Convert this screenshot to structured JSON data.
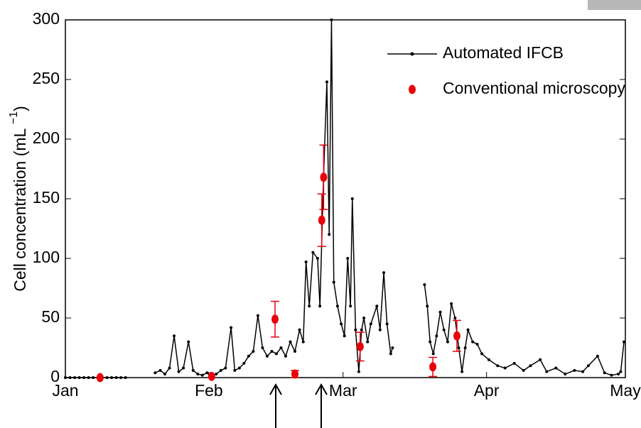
{
  "chart_data": {
    "type": "line",
    "ylabel": "Cell concentration (mL",
    "ylabel_exponent": "−1",
    "ylabel_close": ")",
    "xlim": [
      0,
      121
    ],
    "xticks": [
      {
        "value": 0,
        "label": "Jan"
      },
      {
        "value": 31,
        "label": "Feb"
      },
      {
        "value": 60,
        "label": "Mar"
      },
      {
        "value": 91,
        "label": "Apr"
      },
      {
        "value": 121,
        "label": "May"
      }
    ],
    "ylim": [
      0,
      300
    ],
    "yticks": [
      0,
      50,
      100,
      150,
      200,
      250,
      300
    ],
    "legend": "upper right",
    "series": [
      {
        "name": "Automated IFCB",
        "color": "#000000",
        "x": [
          0,
          1,
          2,
          3,
          4,
          5,
          6,
          7,
          8,
          9,
          10,
          11,
          12,
          13,
          16,
          19.4,
          20.5,
          21.5,
          22.5,
          23.5,
          24.5,
          25.5,
          26.6,
          27.6,
          28.6,
          29.6,
          30.6,
          31.6,
          32.6,
          33.6,
          34.6,
          35.8,
          36.6,
          37.6,
          38.6,
          39.6,
          40.6,
          41.6,
          42.6,
          43.6,
          44.6,
          45.6,
          46.6,
          47.6,
          48.6,
          49.6,
          50.6,
          51.4,
          52,
          52.7,
          53.5,
          54.5,
          55,
          55.8,
          56.5,
          57,
          57.5,
          58,
          58.8,
          59.6,
          60.3,
          61,
          61.6,
          62,
          62.7,
          63.4,
          64,
          64.5,
          65.3,
          66,
          67.3,
          68,
          68.8,
          69.5,
          70.3,
          70.7,
          74,
          77.6,
          78.2,
          78.8,
          79.5,
          80.2,
          81,
          81.8,
          82.6,
          83.4,
          84.2,
          85,
          85.7,
          86.4,
          87,
          88,
          89,
          90,
          91.5,
          93.4,
          95,
          97,
          99,
          100.5,
          102.6,
          104,
          106,
          108,
          110,
          111.8,
          113,
          115,
          116.5,
          118,
          119.5,
          120,
          120.7
        ],
        "values": [
          0,
          0,
          0,
          0,
          0,
          0,
          0,
          0,
          0,
          0,
          0,
          0,
          0,
          0,
          null,
          4,
          6,
          3,
          8,
          35,
          5,
          8,
          30,
          6,
          3,
          2,
          4,
          1,
          3,
          6,
          8,
          42,
          6,
          8,
          12,
          18,
          22,
          52,
          25,
          18,
          22,
          20,
          25,
          18,
          30,
          22,
          40,
          30,
          97,
          60,
          105,
          100,
          60,
          170,
          248,
          120,
          300,
          80,
          60,
          45,
          35,
          100,
          60,
          150,
          40,
          5,
          40,
          50,
          30,
          45,
          60,
          40,
          88,
          45,
          20,
          25,
          null,
          78,
          60,
          30,
          20,
          35,
          55,
          40,
          30,
          62,
          50,
          25,
          5,
          25,
          40,
          30,
          28,
          20,
          15,
          10,
          8,
          12,
          6,
          10,
          15,
          5,
          8,
          3,
          6,
          5,
          10,
          18,
          4,
          2,
          3,
          5,
          30
        ]
      },
      {
        "name": "Conventional microscopy",
        "color": "#e8000b",
        "x": [
          7.5,
          31.6,
          45.3,
          49.6,
          55.4,
          55.8,
          63.7,
          79.4,
          84.6
        ],
        "values": [
          0,
          1,
          49,
          3,
          132,
          168,
          26,
          9,
          35
        ],
        "errors": [
          0,
          0,
          15,
          3,
          22,
          27,
          12,
          8,
          13
        ]
      }
    ]
  }
}
